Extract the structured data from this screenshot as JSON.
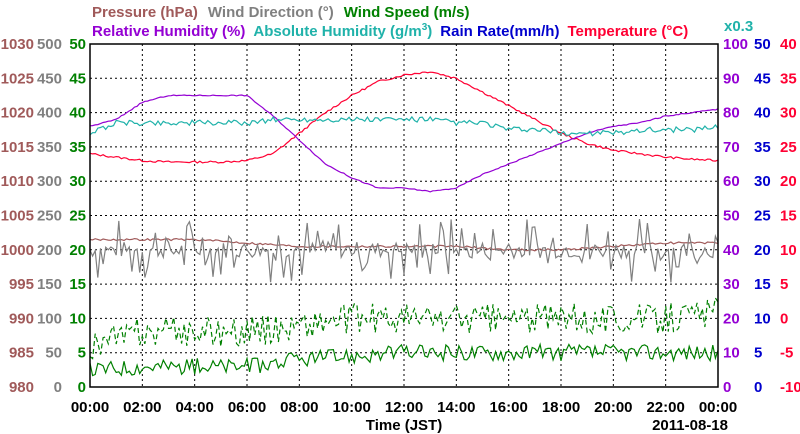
{
  "chart_data": {
    "type": "line",
    "date_label": "2011-08-18",
    "xlabel": "Time (JST)",
    "x_ticks": [
      "00:00",
      "02:00",
      "04:00",
      "06:00",
      "08:00",
      "10:00",
      "12:00",
      "14:00",
      "16:00",
      "18:00",
      "20:00",
      "22:00",
      "00:00"
    ],
    "legend_row1": [
      {
        "text": "Pressure (hPa)",
        "color": "#a05a5a"
      },
      {
        "text": "Wind Direction (°)",
        "color": "#808080"
      },
      {
        "text": "Wind Speed (m/s)",
        "color": "#008000"
      }
    ],
    "legend_row2": [
      {
        "text": "Relative Humidity (%)",
        "color": "#9400d3"
      },
      {
        "text": "Absolute Humidity (g/m",
        "sup": "3",
        "tail": ")",
        "color": "#20b2aa"
      },
      {
        "text": "Rain Rate(mm/h)",
        "color": "#0000cd"
      },
      {
        "text": "Temperature (°C)",
        "color": "#ff0033"
      }
    ],
    "scale_note": {
      "text": "x0.3",
      "color": "#20b2aa"
    },
    "y_axes": [
      {
        "name": "pressure",
        "color": "#a05a5a",
        "ticks": [
          "1030",
          "1025",
          "1020",
          "1015",
          "1010",
          "1005",
          "1000",
          "995",
          "990",
          "985",
          "980"
        ]
      },
      {
        "name": "wind_direction",
        "color": "#808080",
        "ticks": [
          "500",
          "450",
          "400",
          "350",
          "300",
          "250",
          "200",
          "150",
          "100",
          "50",
          "0"
        ]
      },
      {
        "name": "wind_speed",
        "color": "#008000",
        "ticks": [
          "50",
          "45",
          "40",
          "35",
          "30",
          "25",
          "20",
          "15",
          "10",
          "5",
          "0"
        ]
      },
      {
        "name": "relative_humidity",
        "color": "#9400d3",
        "ticks": [
          "100",
          "90",
          "80",
          "70",
          "60",
          "50",
          "40",
          "30",
          "20",
          "10",
          "0"
        ]
      },
      {
        "name": "rain_rate",
        "color": "#0000cd",
        "ticks": [
          "50",
          "45",
          "40",
          "35",
          "30",
          "25",
          "20",
          "15",
          "10",
          "5",
          "0"
        ]
      },
      {
        "name": "temperature",
        "color": "#ff0033",
        "ticks": [
          "40",
          "35",
          "30",
          "25",
          "20",
          "15",
          "10",
          "5",
          "0",
          "-5",
          "-10"
        ]
      }
    ],
    "grid": true,
    "series": [
      {
        "name": "Temperature (°C)",
        "axis": "temperature",
        "color": "#ff0033",
        "style": "solid",
        "x": [
          0,
          1,
          2,
          3,
          4,
          5,
          6,
          7,
          8,
          9,
          10,
          11,
          12,
          13,
          14,
          15,
          16,
          17,
          18,
          19,
          20,
          21,
          22,
          23,
          24
        ],
        "y": [
          24,
          23.5,
          23,
          22.8,
          22.8,
          22.8,
          23,
          24,
          27,
          30,
          32.5,
          34.5,
          35.5,
          36,
          35,
          33,
          31,
          29,
          27,
          25.5,
          24.5,
          24,
          23.5,
          23.2,
          23
        ]
      },
      {
        "name": "Relative Humidity (%)",
        "axis": "relative_humidity",
        "color": "#9400d3",
        "style": "solid",
        "x": [
          0,
          1,
          2,
          3,
          4,
          5,
          6,
          7,
          8,
          9,
          10,
          11,
          12,
          13,
          14,
          15,
          16,
          17,
          18,
          19,
          20,
          21,
          22,
          23,
          24
        ],
        "y": [
          76,
          78,
          83,
          85,
          85,
          85,
          85,
          79,
          72,
          65,
          61,
          58,
          58,
          57,
          58,
          62,
          65,
          68,
          71,
          74,
          76,
          77,
          79,
          80,
          81
        ]
      },
      {
        "name": "Absolute Humidity (g/m3)",
        "axis": "relative_humidity",
        "color": "#20b2aa",
        "style": "solid",
        "x": [
          0,
          1,
          2,
          3,
          4,
          5,
          6,
          7,
          8,
          9,
          10,
          11,
          12,
          13,
          14,
          15,
          16,
          17,
          18,
          19,
          20,
          21,
          22,
          23,
          24
        ],
        "y": [
          74,
          77,
          77,
          77,
          77,
          77,
          77,
          78,
          78,
          78,
          78,
          78,
          78,
          78,
          77,
          77,
          75,
          75,
          74,
          74,
          74,
          75,
          75,
          75,
          76
        ]
      },
      {
        "name": "Pressure (hPa)",
        "axis": "pressure",
        "color": "#a05a5a",
        "style": "solid",
        "x": [
          0,
          2,
          4,
          6,
          8,
          10,
          12,
          14,
          16,
          18,
          20,
          22,
          24
        ],
        "y": [
          1001.5,
          1001.5,
          1001.5,
          1001,
          1000.5,
          1000.5,
          1000.5,
          1000.5,
          1000,
          1000,
          1000.5,
          1001,
          1001
        ]
      },
      {
        "name": "Wind Direction (°)",
        "axis": "wind_direction",
        "color": "#808080",
        "style": "jagged",
        "base": 200,
        "amplitude": 40
      },
      {
        "name": "Wind Speed (m/s) avg",
        "axis": "wind_speed",
        "color": "#008000",
        "style": "solid",
        "x": [
          0,
          2,
          4,
          6,
          8,
          10,
          12,
          14,
          16,
          18,
          20,
          22,
          24
        ],
        "y": [
          2.5,
          3,
          3,
          3,
          4,
          4.5,
          5,
          5,
          5,
          5,
          5,
          5,
          5
        ]
      },
      {
        "name": "Wind Speed (m/s) gust",
        "axis": "wind_speed",
        "color": "#008000",
        "style": "dashed",
        "x": [
          0,
          2,
          4,
          6,
          8,
          10,
          12,
          14,
          16,
          18,
          20,
          22,
          24
        ],
        "y": [
          6,
          8,
          8,
          8,
          9,
          10,
          10,
          10,
          10,
          10,
          10,
          10,
          11
        ]
      }
    ]
  }
}
